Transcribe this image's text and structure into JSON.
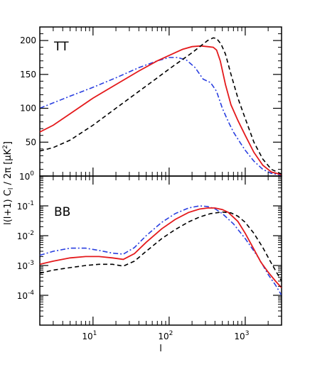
{
  "chart_data": [
    {
      "type": "line",
      "panel_label": "TT",
      "x_scale": "log",
      "y_scale": "linear",
      "xlim": [
        2,
        3000
      ],
      "ylim": [
        0,
        220
      ],
      "yticks": [
        50,
        100,
        150,
        200
      ],
      "grid": false,
      "series": [
        {
          "style": "dash-dot",
          "color": "#2a3fe0",
          "x": [
            2,
            3,
            5,
            10,
            20,
            40,
            70,
            100,
            130,
            170,
            220,
            280,
            350,
            420,
            500,
            600,
            700,
            850,
            1000,
            1300,
            1700,
            2200,
            3000
          ],
          "y": [
            100,
            108,
            118,
            131,
            145,
            160,
            170,
            175,
            175,
            171,
            160,
            143,
            138,
            125,
            100,
            80,
            65,
            50,
            38,
            22,
            10,
            4,
            1
          ]
        },
        {
          "style": "solid",
          "color": "#e41a1c",
          "x": [
            2,
            3,
            5,
            10,
            20,
            40,
            70,
            100,
            150,
            200,
            260,
            320,
            380,
            420,
            470,
            550,
            650,
            800,
            1000,
            1300,
            1700,
            2200,
            3000
          ],
          "y": [
            65,
            75,
            92,
            115,
            135,
            155,
            170,
            178,
            187,
            191,
            192,
            191,
            190,
            186,
            170,
            135,
            105,
            82,
            60,
            35,
            16,
            6,
            2
          ]
        },
        {
          "style": "dashed",
          "color": "#000000",
          "x": [
            2,
            3,
            5,
            10,
            20,
            40,
            70,
            100,
            150,
            200,
            260,
            320,
            380,
            420,
            480,
            550,
            650,
            800,
            1000,
            1300,
            1700,
            2200,
            3000
          ],
          "y": [
            37,
            42,
            53,
            75,
            100,
            125,
            145,
            158,
            172,
            182,
            192,
            200,
            204,
            203,
            195,
            180,
            150,
            115,
            85,
            50,
            25,
            10,
            3
          ]
        }
      ]
    },
    {
      "type": "line",
      "panel_label": "BB",
      "x_scale": "log",
      "y_scale": "log",
      "xlim": [
        2,
        3000
      ],
      "ylim": [
        1e-05,
        1
      ],
      "xticks": [
        10,
        100,
        1000
      ],
      "yticks": [
        0.0001,
        0.001,
        0.01,
        0.1,
        1
      ],
      "grid": false,
      "series": [
        {
          "style": "dash-dot",
          "color": "#2a3fe0",
          "x": [
            2,
            3,
            5,
            8,
            12,
            18,
            25,
            35,
            50,
            80,
            120,
            180,
            250,
            320,
            400,
            500,
            700,
            1000,
            1500,
            2000,
            2500,
            3000
          ],
          "y": [
            0.0022,
            0.003,
            0.0038,
            0.0038,
            0.0032,
            0.0026,
            0.0024,
            0.004,
            0.01,
            0.028,
            0.055,
            0.085,
            0.1,
            0.095,
            0.08,
            0.055,
            0.025,
            0.008,
            0.0018,
            0.0005,
            0.00022,
            0.0001
          ]
        },
        {
          "style": "solid",
          "color": "#e41a1c",
          "x": [
            2,
            3,
            5,
            8,
            12,
            18,
            25,
            35,
            50,
            80,
            120,
            180,
            250,
            320,
            400,
            500,
            600,
            800,
            1000,
            1300,
            1600,
            2000,
            2500,
            3000
          ],
          "y": [
            0.0011,
            0.0014,
            0.0018,
            0.002,
            0.002,
            0.0018,
            0.0016,
            0.0025,
            0.006,
            0.017,
            0.035,
            0.06,
            0.078,
            0.085,
            0.085,
            0.075,
            0.06,
            0.03,
            0.012,
            0.0035,
            0.0013,
            0.0006,
            0.0003,
            0.00018
          ]
        },
        {
          "style": "dashed",
          "color": "#000000",
          "x": [
            2,
            3,
            5,
            8,
            12,
            18,
            25,
            35,
            50,
            80,
            120,
            180,
            250,
            350,
            500,
            650,
            800,
            1000,
            1300,
            1700,
            2200,
            3000
          ],
          "y": [
            0.00055,
            0.0007,
            0.00085,
            0.001,
            0.0011,
            0.0011,
            0.00095,
            0.0014,
            0.003,
            0.008,
            0.016,
            0.029,
            0.042,
            0.055,
            0.062,
            0.058,
            0.045,
            0.028,
            0.012,
            0.004,
            0.0012,
            0.0003
          ]
        }
      ]
    }
  ]
}
